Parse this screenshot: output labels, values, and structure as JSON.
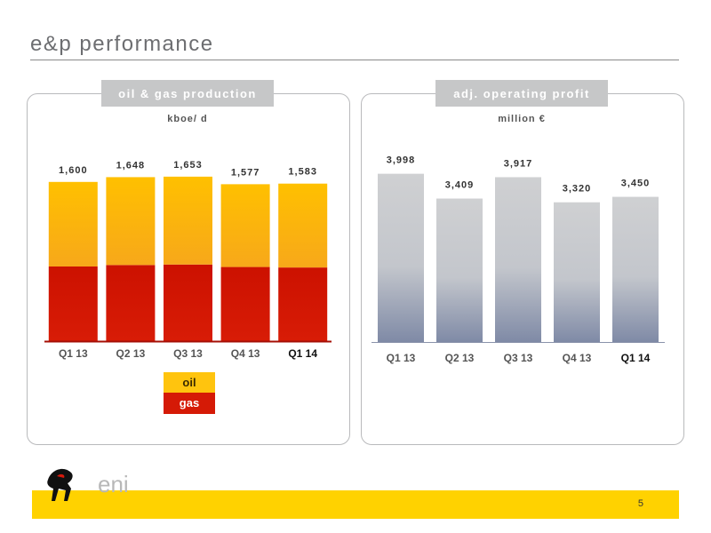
{
  "page": {
    "title": "e&p performance",
    "page_number": "5",
    "logo_text": "eni"
  },
  "left_panel": {
    "tab_label": "oil & gas production",
    "unit": "kboe/ d",
    "legend": {
      "oil": "oil",
      "gas": "gas"
    }
  },
  "right_panel": {
    "tab_label": "adj. operating profit",
    "unit": "million €"
  },
  "colors": {
    "oil_top": "#ffc000",
    "oil_bottom": "#f7a81a",
    "gas": "#cc1100",
    "gray_top": "#cfd0d2",
    "gray_bottom": "#7f8aa6",
    "footer": "#ffd200"
  },
  "chart_data": [
    {
      "type": "bar",
      "stacked": true,
      "categories": [
        "Q1 13",
        "Q2 13",
        "Q3 13",
        "Q4 13",
        "Q1 14"
      ],
      "highlight_category": "Q1 14",
      "series": [
        {
          "name": "gas",
          "values": [
            750,
            765,
            770,
            745,
            740
          ]
        },
        {
          "name": "oil",
          "values": [
            850,
            883,
            883,
            832,
            843
          ]
        }
      ],
      "totals": [
        1600,
        1648,
        1653,
        1577,
        1583
      ],
      "total_labels": [
        "1,600",
        "1,648",
        "1,653",
        "1,577",
        "1,583"
      ],
      "ylim": [
        0,
        2000
      ],
      "legend": "bottom"
    },
    {
      "type": "bar",
      "categories": [
        "Q1 13",
        "Q2 13",
        "Q3 13",
        "Q4 13",
        "Q1 14"
      ],
      "highlight_category": "Q1 14",
      "values": [
        3998,
        3409,
        3917,
        3320,
        3450
      ],
      "value_labels": [
        "3,998",
        "3,409",
        "3,917",
        "3,320",
        "3,450"
      ],
      "ylim": [
        0,
        4750
      ]
    }
  ]
}
